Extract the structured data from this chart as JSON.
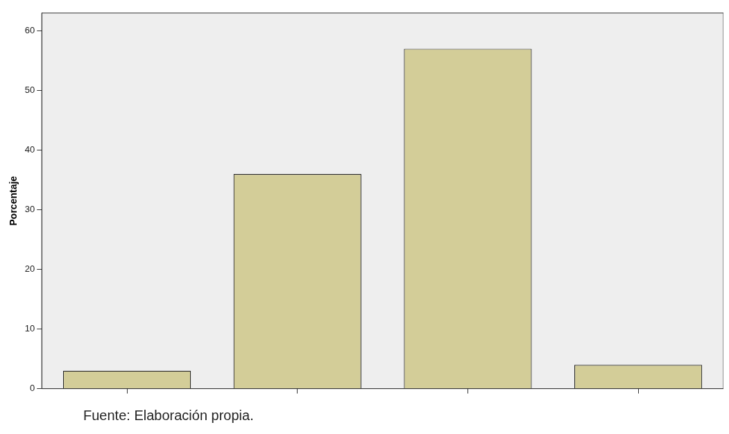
{
  "chart_data": {
    "type": "bar",
    "ylabel": "Porcentaje",
    "categories": [
      null,
      null,
      null,
      null
    ],
    "values": [
      3,
      36,
      57,
      4
    ],
    "color": "#d3cd98",
    "ylim": [
      0,
      63
    ],
    "yticks": [
      0,
      10,
      20,
      30,
      40,
      50,
      60
    ],
    "grid": false,
    "legend": false,
    "annotations": [
      "Fuente: Elaboración propia."
    ]
  }
}
